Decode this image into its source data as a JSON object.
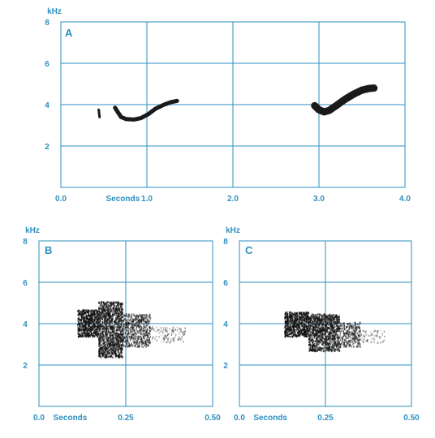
{
  "chart_data": [
    {
      "type": "spectrogram",
      "panel_label": "A",
      "ylabel": "kHz",
      "xlabel": "Seconds",
      "xlim": [
        0,
        4.0
      ],
      "ylim": [
        0,
        8
      ],
      "xticks": [
        "0.0",
        "1.0",
        "2.0",
        "3.0",
        "4.0"
      ],
      "xtick_values": [
        0,
        1,
        2,
        3,
        4
      ],
      "yticks": [
        "2",
        "4",
        "6",
        "8"
      ],
      "ytick_values": [
        2,
        4,
        6,
        8
      ],
      "grid": true,
      "series": [
        {
          "points": [
            [
              0.44,
              3.75
            ],
            [
              0.45,
              3.4
            ]
          ],
          "width_khz": 0.12
        },
        {
          "points": [
            [
              0.63,
              3.85
            ],
            [
              0.66,
              3.65
            ],
            [
              0.7,
              3.4
            ],
            [
              0.76,
              3.3
            ],
            [
              0.85,
              3.28
            ],
            [
              0.93,
              3.35
            ],
            [
              1.02,
              3.55
            ],
            [
              1.1,
              3.8
            ],
            [
              1.2,
              4.0
            ],
            [
              1.28,
              4.12
            ],
            [
              1.35,
              4.18
            ]
          ],
          "width_khz": 0.2
        },
        {
          "points": [
            [
              2.95,
              3.95
            ],
            [
              3.0,
              3.75
            ],
            [
              3.06,
              3.65
            ],
            [
              3.12,
              3.72
            ],
            [
              3.2,
              3.95
            ],
            [
              3.3,
              4.25
            ],
            [
              3.4,
              4.5
            ],
            [
              3.5,
              4.7
            ],
            [
              3.58,
              4.78
            ],
            [
              3.64,
              4.8
            ]
          ],
          "width_khz": 0.35
        }
      ]
    },
    {
      "type": "spectrogram",
      "panel_label": "B",
      "ylabel": "kHz",
      "xlabel": "Seconds",
      "xlim": [
        0,
        0.5
      ],
      "ylim": [
        0,
        8
      ],
      "xticks": [
        "0.0",
        "0.25",
        "0.50"
      ],
      "xtick_values": [
        0,
        0.25,
        0.5
      ],
      "yticks": [
        "2",
        "4",
        "6",
        "8"
      ],
      "ytick_values": [
        2,
        4,
        6,
        8
      ],
      "grid": true,
      "blobs": [
        {
          "t": [
            0.11,
            0.17
          ],
          "f": [
            3.4,
            4.7
          ],
          "density": 0.9
        },
        {
          "t": [
            0.17,
            0.24
          ],
          "f": [
            2.4,
            5.1
          ],
          "density": 0.75
        },
        {
          "t": [
            0.24,
            0.32
          ],
          "f": [
            2.9,
            4.5
          ],
          "density": 0.5
        },
        {
          "t": [
            0.32,
            0.42
          ],
          "f": [
            3.1,
            3.9
          ],
          "density": 0.15
        }
      ]
    },
    {
      "type": "spectrogram",
      "panel_label": "C",
      "ylabel": "kHz",
      "xlabel": "Seconds",
      "xlim": [
        0,
        0.5
      ],
      "ylim": [
        0,
        8
      ],
      "xticks": [
        "0.0",
        "0.25",
        "0.50"
      ],
      "xtick_values": [
        0,
        0.25,
        0.5
      ],
      "yticks": [
        "2",
        "4",
        "6",
        "8"
      ],
      "ytick_values": [
        2,
        4,
        6,
        8
      ],
      "grid": true,
      "blobs": [
        {
          "t": [
            0.13,
            0.2
          ],
          "f": [
            3.4,
            4.6
          ],
          "density": 0.9
        },
        {
          "t": [
            0.2,
            0.29
          ],
          "f": [
            2.7,
            4.5
          ],
          "density": 0.75
        },
        {
          "t": [
            0.29,
            0.35
          ],
          "f": [
            2.9,
            4.1
          ],
          "density": 0.45
        },
        {
          "t": [
            0.35,
            0.42
          ],
          "f": [
            3.1,
            3.7
          ],
          "density": 0.15
        }
      ]
    }
  ]
}
